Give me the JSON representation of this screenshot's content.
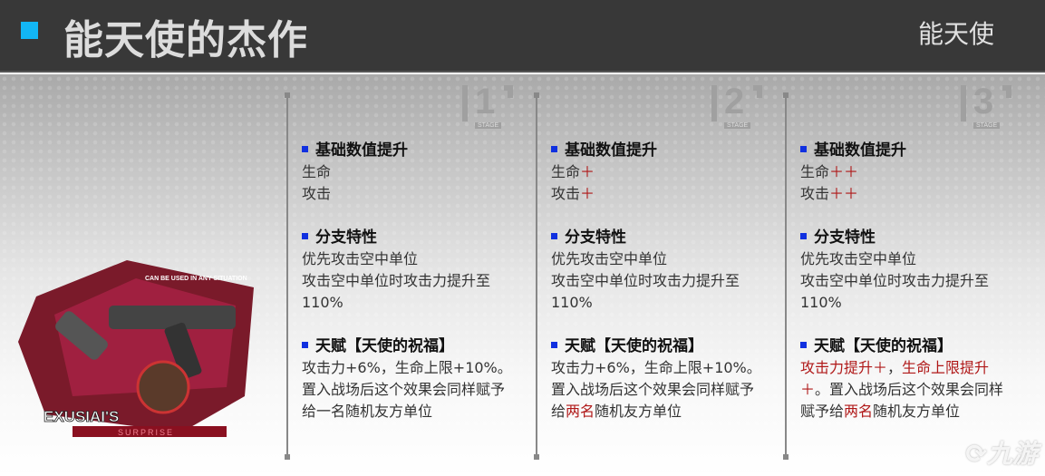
{
  "header": {
    "title": "能天使的杰作",
    "operator": "能天使",
    "accent": "#12b6f5"
  },
  "art": {
    "tagline": "CAN BE USED IN ANY SITUATION",
    "name": "EXUSIAI'S",
    "subtitle": "SURPRISE"
  },
  "stage_label": "STAGE",
  "columns": [
    {
      "stage": "1",
      "sections": [
        {
          "heading": "基础数值提升",
          "lines": [
            [
              {
                "t": "生命"
              }
            ],
            [
              {
                "t": "攻击"
              }
            ]
          ]
        },
        {
          "heading": "分支特性",
          "lines": [
            [
              {
                "t": "优先攻击空中单位"
              }
            ],
            [
              {
                "t": "攻击空中单位时攻击力提升至"
              }
            ],
            [
              {
                "t": "110%"
              }
            ]
          ]
        },
        {
          "heading": "天赋【天使的祝福】",
          "lines": [
            [
              {
                "t": "攻击力+6%，生命上限+10%。"
              }
            ],
            [
              {
                "t": "置入战场后这个效果会同样赋予"
              }
            ],
            [
              {
                "t": "给一名随机友方单位"
              }
            ]
          ]
        }
      ]
    },
    {
      "stage": "2",
      "sections": [
        {
          "heading": "基础数值提升",
          "lines": [
            [
              {
                "t": "生命"
              },
              {
                "t": "＋",
                "red": true
              }
            ],
            [
              {
                "t": "攻击"
              },
              {
                "t": "＋",
                "red": true
              }
            ]
          ]
        },
        {
          "heading": "分支特性",
          "lines": [
            [
              {
                "t": "优先攻击空中单位"
              }
            ],
            [
              {
                "t": "攻击空中单位时攻击力提升至"
              }
            ],
            [
              {
                "t": "110%"
              }
            ]
          ]
        },
        {
          "heading": "天赋【天使的祝福】",
          "lines": [
            [
              {
                "t": "攻击力+6%，生命上限+10%。"
              }
            ],
            [
              {
                "t": "置入战场后这个效果会同样赋予"
              }
            ],
            [
              {
                "t": "给"
              },
              {
                "t": "两名",
                "red": true
              },
              {
                "t": "随机友方单位"
              }
            ]
          ]
        }
      ]
    },
    {
      "stage": "3",
      "sections": [
        {
          "heading": "基础数值提升",
          "lines": [
            [
              {
                "t": "生命"
              },
              {
                "t": "＋＋",
                "red": true
              }
            ],
            [
              {
                "t": "攻击"
              },
              {
                "t": "＋＋",
                "red": true
              }
            ]
          ]
        },
        {
          "heading": "分支特性",
          "lines": [
            [
              {
                "t": "优先攻击空中单位"
              }
            ],
            [
              {
                "t": "攻击空中单位时攻击力提升至"
              }
            ],
            [
              {
                "t": "110%"
              }
            ]
          ]
        },
        {
          "heading": "天赋【天使的祝福】",
          "lines": [
            [
              {
                "t": "攻击力提升＋",
                "red": true
              },
              {
                "t": "，"
              },
              {
                "t": "生命上限提升",
                "red": true
              }
            ],
            [
              {
                "t": "＋",
                "red": true
              },
              {
                "t": "。置入战场后这个效果会同样"
              }
            ],
            [
              {
                "t": "赋予给"
              },
              {
                "t": "两名",
                "red": true
              },
              {
                "t": "随机友方单位"
              }
            ]
          ]
        }
      ]
    }
  ],
  "watermark": "九游"
}
